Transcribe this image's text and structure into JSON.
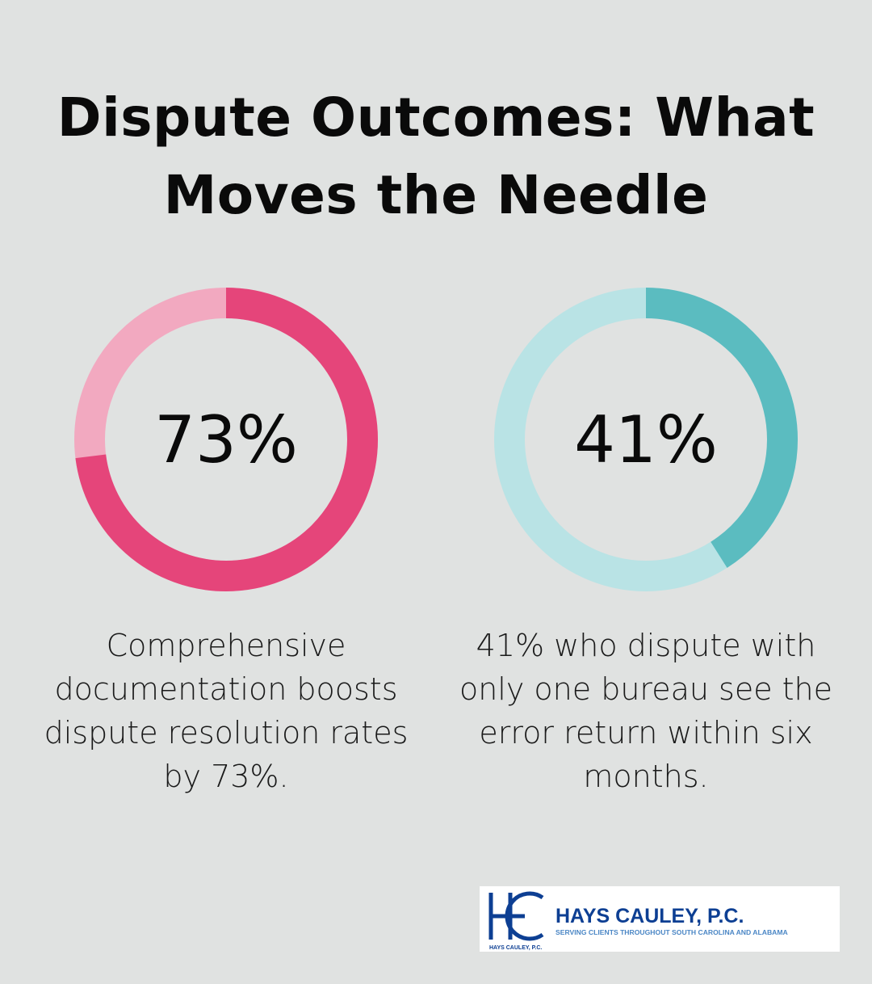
{
  "title": "Dispute Outcomes: What Moves the Needle",
  "chart_data": [
    {
      "type": "pie",
      "variant": "donut",
      "value": 73,
      "label": "73%",
      "caption": "Comprehensive documentation boosts dispute resolution rates by 73%.",
      "colors": {
        "fill": "#e5457a",
        "track": "#f2a9c0"
      }
    },
    {
      "type": "pie",
      "variant": "donut",
      "value": 41,
      "label": "41%",
      "caption": "41% who dispute with only one bureau see the error return within six months.",
      "colors": {
        "fill": "#5bbcc0",
        "track": "#b9e3e5"
      }
    }
  ],
  "logo": {
    "name": "HAYS CAULEY, P.C.",
    "tagline": "SERVING CLIENTS THROUGHOUT SOUTH CAROLINA AND ALABAMA",
    "small": "HAYS CAULEY, P.C.",
    "color": "#0d3f93",
    "tagline_color": "#4a86c5"
  }
}
